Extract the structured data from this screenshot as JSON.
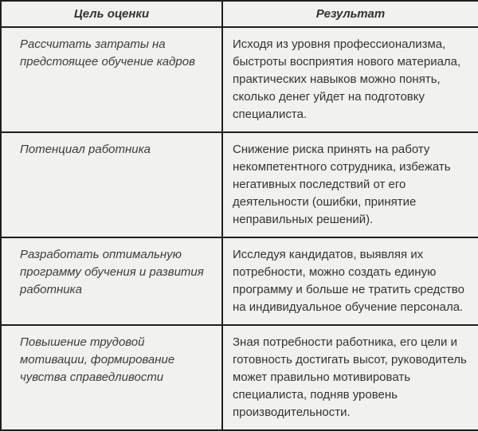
{
  "table": {
    "headers": {
      "goal": "Цель оценки",
      "result": "Результат"
    },
    "rows": [
      {
        "goal": "Рассчитать затраты на предстоящее обучение кадров",
        "result": "Исходя из уровня профессионализма, быстроты восприятия нового материала, практических навыков можно понять, сколько денег уйдет на подготовку специалиста."
      },
      {
        "goal": "Потенциал работника",
        "result": "Снижение риска принять на работу некомпетентного сотрудника, избежать негативных последствий от его деятельности (ошибки, принятие неправильных решений)."
      },
      {
        "goal": "Разработать оптимальную программу обучения и развития работника",
        "result": "Исследуя кандидатов, выявляя их потребности, можно создать единую программу и больше не тратить средство на индивидуальное обучение персонала."
      },
      {
        "goal": "Повышение трудовой мотивации, формирование чувства справедливости",
        "result": "Зная потребности работника, его цели и готовность достигать высот, руководитель может правильно мотивировать специалиста, подняв уровень производительности."
      }
    ]
  },
  "colors": {
    "background": "#f1f1ef",
    "border": "#1f1f1f",
    "text": "#333333"
  }
}
